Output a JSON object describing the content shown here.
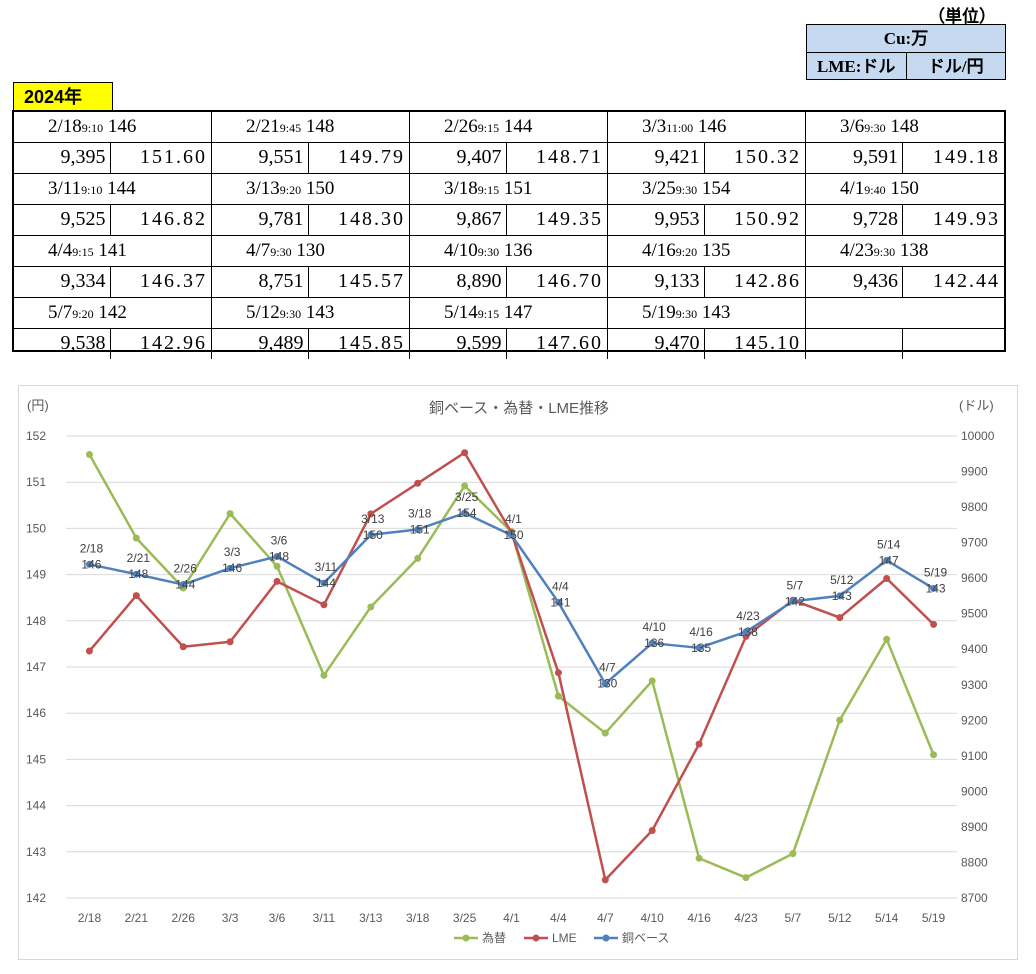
{
  "unit": {
    "label": "（単位）",
    "cu": "Cu:万",
    "lme": "LME:ドル",
    "yen": "ドル/円"
  },
  "year": "2024年",
  "table": [
    {
      "date": "2/18",
      "time": "9:10",
      "base": "146",
      "lme": "9,395",
      "yen": "151.60"
    },
    {
      "date": "2/21",
      "time": "9:45",
      "base": "148",
      "lme": "9,551",
      "yen": "149.79"
    },
    {
      "date": "2/26",
      "time": "9:15",
      "base": "144",
      "lme": "9,407",
      "yen": "148.71"
    },
    {
      "date": "3/3",
      "time": "11:00",
      "base": "146",
      "lme": "9,421",
      "yen": "150.32"
    },
    {
      "date": "3/6",
      "time": "9:30",
      "base": "148",
      "lme": "9,591",
      "yen": "149.18"
    },
    {
      "date": "3/11",
      "time": "9:10",
      "base": "144",
      "lme": "9,525",
      "yen": "146.82"
    },
    {
      "date": "3/13",
      "time": "9:20",
      "base": "150",
      "lme": "9,781",
      "yen": "148.30"
    },
    {
      "date": "3/18",
      "time": "9:15",
      "base": "151",
      "lme": "9,867",
      "yen": "149.35"
    },
    {
      "date": "3/25",
      "time": "9:30",
      "base": "154",
      "lme": "9,953",
      "yen": "150.92"
    },
    {
      "date": "4/1",
      "time": "9:40",
      "base": "150",
      "lme": "9,728",
      "yen": "149.93"
    },
    {
      "date": "4/4",
      "time": "9:15",
      "base": "141",
      "lme": "9,334",
      "yen": "146.37"
    },
    {
      "date": "4/7",
      "time": "9:30",
      "base": "130",
      "lme": "8,751",
      "yen": "145.57"
    },
    {
      "date": "4/10",
      "time": "9:30",
      "base": "136",
      "lme": "8,890",
      "yen": "146.70"
    },
    {
      "date": "4/16",
      "time": "9:20",
      "base": "135",
      "lme": "9,133",
      "yen": "142.86"
    },
    {
      "date": "4/23",
      "time": "9:30",
      "base": "138",
      "lme": "9,436",
      "yen": "142.44"
    },
    {
      "date": "5/7",
      "time": "9:20",
      "base": "142",
      "lme": "9,538",
      "yen": "142.96"
    },
    {
      "date": "5/12",
      "time": "9:30",
      "base": "143",
      "lme": "9,489",
      "yen": "145.85"
    },
    {
      "date": "5/14",
      "time": "9:15",
      "base": "147",
      "lme": "9,599",
      "yen": "147.60"
    },
    {
      "date": "5/19",
      "time": "9:30",
      "base": "143",
      "lme": "9,470",
      "yen": "145.10"
    },
    {
      "date": "",
      "time": "",
      "base": "",
      "lme": "",
      "yen": ""
    }
  ],
  "chart_data": {
    "type": "line",
    "title": "銅ベース・為替・LME推移",
    "ylabel_left": "(円)",
    "ylabel_right": "(ドル)",
    "categories": [
      "2/18",
      "2/21",
      "2/26",
      "3/3",
      "3/6",
      "3/11",
      "3/13",
      "3/18",
      "3/25",
      "4/1",
      "4/4",
      "4/7",
      "4/10",
      "4/16",
      "4/23",
      "5/7",
      "5/12",
      "5/14",
      "5/19"
    ],
    "ylim_left": [
      142,
      152
    ],
    "yticks_left": [
      142,
      143,
      144,
      145,
      146,
      147,
      148,
      149,
      150,
      151,
      152
    ],
    "ylim_right": [
      8700,
      10000
    ],
    "yticks_right": [
      8700,
      8800,
      8900,
      9000,
      9100,
      9200,
      9300,
      9400,
      9500,
      9600,
      9700,
      9800,
      9900,
      10000
    ],
    "grid": true,
    "legend_position": "bottom",
    "series": [
      {
        "name": "為替",
        "axis": "left",
        "color": "#9bbb59",
        "values": [
          151.6,
          149.79,
          148.71,
          150.32,
          149.18,
          146.82,
          148.3,
          149.35,
          150.92,
          149.93,
          146.37,
          145.57,
          146.7,
          142.86,
          142.44,
          142.96,
          145.85,
          147.6,
          145.1
        ]
      },
      {
        "name": "LME",
        "axis": "right",
        "color": "#c0504d",
        "values": [
          9395,
          9551,
          9407,
          9421,
          9591,
          9525,
          9781,
          9867,
          9953,
          9728,
          9334,
          8751,
          8890,
          9133,
          9436,
          9538,
          9489,
          9599,
          9470
        ]
      },
      {
        "name": "銅ベース",
        "axis": "right",
        "color": "#4f81bd",
        "values": [
          9639,
          9611,
          9582,
          9628,
          9661,
          9586,
          9722,
          9737,
          9783,
          9721,
          9532,
          9303,
          9417,
          9404,
          9449,
          9535,
          9550,
          9650,
          9571
        ]
      }
    ],
    "annotations": [
      {
        "date": "2/18",
        "value": "146"
      },
      {
        "date": "2/21",
        "value": "148"
      },
      {
        "date": "2/26",
        "value": "144"
      },
      {
        "date": "3/3",
        "value": "146"
      },
      {
        "date": "3/6",
        "value": "148"
      },
      {
        "date": "3/11",
        "value": "144"
      },
      {
        "date": "3/13",
        "value": "150"
      },
      {
        "date": "3/18",
        "value": "151"
      },
      {
        "date": "3/25",
        "value": "154"
      },
      {
        "date": "4/1",
        "value": "150"
      },
      {
        "date": "4/4",
        "value": "141"
      },
      {
        "date": "4/7",
        "value": "130"
      },
      {
        "date": "4/10",
        "value": "136"
      },
      {
        "date": "4/16",
        "value": "135"
      },
      {
        "date": "4/23",
        "value": "138"
      },
      {
        "date": "5/7",
        "value": "142"
      },
      {
        "date": "5/12",
        "value": "143"
      },
      {
        "date": "5/14",
        "value": "147"
      },
      {
        "date": "5/19",
        "value": "143"
      }
    ]
  }
}
